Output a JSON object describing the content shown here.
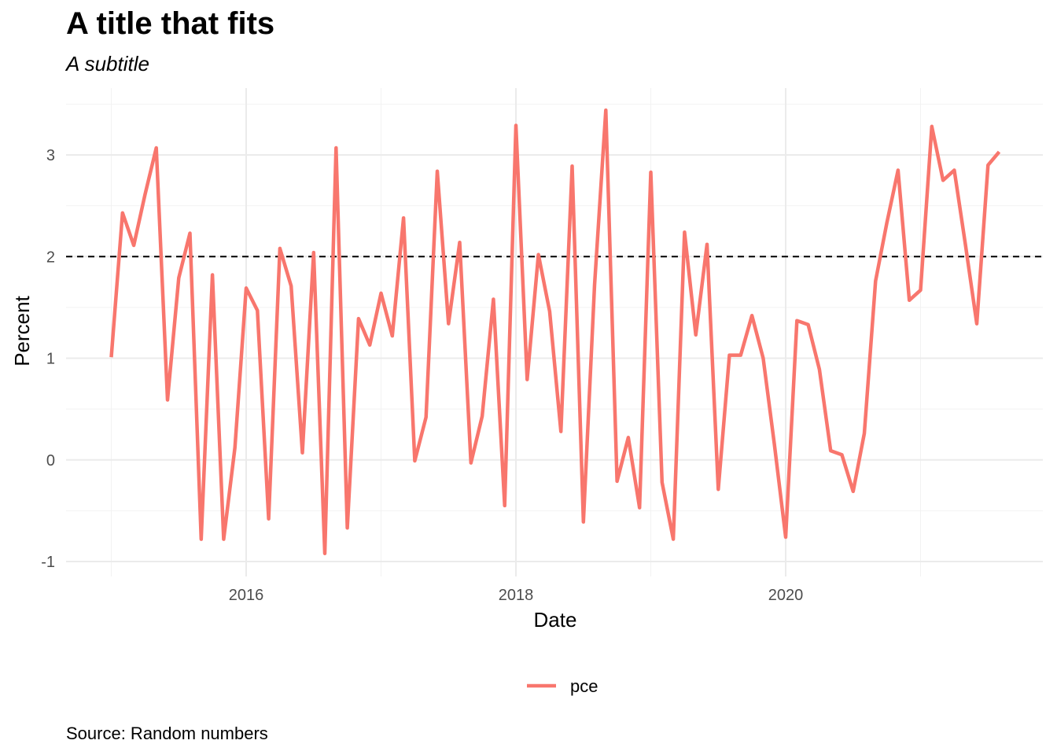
{
  "chart_data": {
    "type": "line",
    "title": "A title that fits",
    "subtitle": "A subtitle",
    "caption": "Source: Random numbers",
    "xlabel": "Date",
    "ylabel": "Percent",
    "xlim": [
      2014.67,
      2021.85
    ],
    "ylim": [
      -1.1,
      3.6
    ],
    "x_ticks": [
      2016,
      2018,
      2020
    ],
    "x_tick_labels": [
      "2016",
      "2018",
      "2020"
    ],
    "y_ticks": [
      -1,
      0,
      1,
      2,
      3
    ],
    "y_tick_labels": [
      "-1",
      "0",
      "1",
      "2",
      "3"
    ],
    "grid": true,
    "legend_position": "bottom",
    "reference_line": {
      "y": 2,
      "style": "dashed",
      "color": "#000000"
    },
    "series": [
      {
        "name": "pce",
        "color": "#F8766D",
        "x": [
          2015.0,
          2015.0833,
          2015.1667,
          2015.25,
          2015.3333,
          2015.4167,
          2015.5,
          2015.5833,
          2015.6667,
          2015.75,
          2015.8333,
          2015.9167,
          2016.0,
          2016.0833,
          2016.1667,
          2016.25,
          2016.3333,
          2016.4167,
          2016.5,
          2016.5833,
          2016.6667,
          2016.75,
          2016.8333,
          2016.9167,
          2017.0,
          2017.0833,
          2017.1667,
          2017.25,
          2017.3333,
          2017.4167,
          2017.5,
          2017.5833,
          2017.6667,
          2017.75,
          2017.8333,
          2017.9167,
          2018.0,
          2018.0833,
          2018.1667,
          2018.25,
          2018.3333,
          2018.4167,
          2018.5,
          2018.5833,
          2018.6667,
          2018.75,
          2018.8333,
          2018.9167,
          2019.0,
          2019.0833,
          2019.1667,
          2019.25,
          2019.3333,
          2019.4167,
          2019.5,
          2019.5833,
          2019.6667,
          2019.75,
          2019.8333,
          2019.9167,
          2020.0,
          2020.0833,
          2020.1667,
          2020.25,
          2020.3333,
          2020.4167,
          2020.5,
          2020.5833,
          2020.6667,
          2020.75,
          2020.8333,
          2020.9167,
          2021.0,
          2021.0833,
          2021.1667,
          2021.25,
          2021.3333,
          2021.4167,
          2021.5,
          2021.5833
        ],
        "y": [
          1.01,
          2.43,
          2.11,
          2.61,
          3.07,
          0.59,
          1.79,
          2.23,
          -0.78,
          1.82,
          -0.78,
          0.12,
          1.69,
          1.47,
          -0.58,
          2.08,
          1.71,
          0.07,
          2.04,
          -0.92,
          3.07,
          -0.67,
          1.39,
          1.13,
          1.64,
          1.22,
          2.38,
          -0.01,
          0.42,
          2.84,
          1.34,
          2.14,
          -0.03,
          0.43,
          1.58,
          -0.45,
          3.29,
          0.79,
          2.02,
          1.46,
          0.28,
          2.89,
          -0.61,
          1.72,
          3.44,
          -0.21,
          0.22,
          -0.47,
          2.83,
          -0.22,
          -0.78,
          2.24,
          1.23,
          2.12,
          -0.29,
          1.03,
          1.03,
          1.42,
          1.0,
          0.15,
          -0.76,
          1.37,
          1.33,
          0.89,
          0.09,
          0.05,
          -0.31,
          0.26,
          1.76,
          2.33,
          2.85,
          1.57,
          1.67,
          3.28,
          2.75,
          2.85,
          2.11,
          1.34,
          2.9,
          3.03
        ]
      }
    ]
  }
}
